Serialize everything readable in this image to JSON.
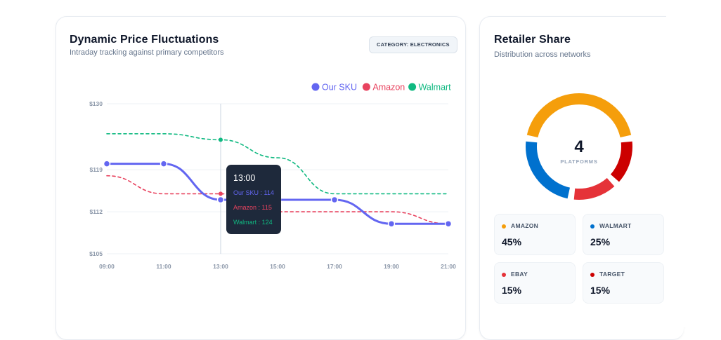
{
  "price_card": {
    "title": "Dynamic Price Fluctuations",
    "subtitle": "Intraday tracking against primary competitors",
    "badge": "CATEGORY: ELECTRONICS"
  },
  "chart_data": {
    "type": "line",
    "x": [
      "09:00",
      "11:00",
      "13:00",
      "15:00",
      "17:00",
      "19:00",
      "21:00"
    ],
    "series": [
      {
        "name": "Our SKU",
        "color": "#6366f1",
        "dash": false,
        "markers": true,
        "values": [
          120,
          120,
          114,
          114,
          114,
          110,
          110
        ]
      },
      {
        "name": "Amazon",
        "color": "#e8435f",
        "dash": true,
        "markers": false,
        "values": [
          118,
          115,
          115,
          112,
          112,
          112,
          110
        ]
      },
      {
        "name": "Walmart",
        "color": "#10b981",
        "dash": true,
        "markers": false,
        "values": [
          125,
          125,
          124,
          121,
          115,
          115,
          115
        ]
      }
    ],
    "ylim": [
      105,
      130
    ],
    "y_ticks": [
      {
        "value": 130,
        "label": "$130"
      },
      {
        "value": 119,
        "label": "$119"
      },
      {
        "value": 112,
        "label": "$112"
      },
      {
        "value": 105,
        "label": "$105"
      }
    ],
    "grid": true,
    "legend": "top-right",
    "tooltip": {
      "x_index": 2,
      "title": "13:00",
      "lines": [
        "Our SKU : 114",
        "Amazon : 115",
        "Walmart : 124"
      ]
    }
  },
  "share_card": {
    "title": "Retailer Share",
    "subtitle": "Distribution across networks",
    "center_value": "4",
    "center_label": "PLATFORMS",
    "segments": [
      {
        "name": "AMAZON",
        "value": 45,
        "display": "45%",
        "color": "#f59e0b"
      },
      {
        "name": "TARGET",
        "value": 15,
        "display": "15%",
        "color": "#cc0000"
      },
      {
        "name": "EBAY",
        "value": 15,
        "display": "15%",
        "color": "#e53238"
      },
      {
        "name": "WALMART",
        "value": 25,
        "display": "25%",
        "color": "#0071ce"
      }
    ]
  }
}
